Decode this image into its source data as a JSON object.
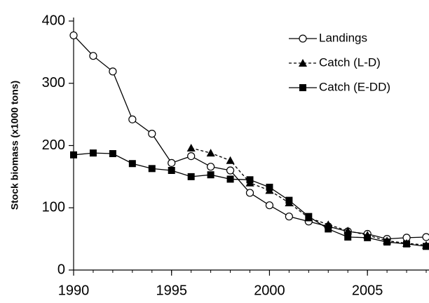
{
  "chart_data": {
    "type": "line",
    "y_label": "Stock biomass (x1000 tons)",
    "x": [
      1990,
      1991,
      1992,
      1993,
      1994,
      1995,
      1996,
      1997,
      1998,
      1999,
      2000,
      2001,
      2002,
      2003,
      2004,
      2005,
      2006,
      2007,
      2008
    ],
    "series": [
      {
        "name": "Landings",
        "color": "#000000",
        "marker": "circle",
        "dashed": false,
        "values": [
          377,
          344,
          319,
          242,
          219,
          172,
          183,
          166,
          160,
          124,
          104,
          86,
          78,
          70,
          62,
          58,
          50,
          52,
          53
        ]
      },
      {
        "name": "Catch (L-D)",
        "color": "#000000",
        "marker": "triangle",
        "dashed": true,
        "values": [
          null,
          null,
          null,
          null,
          null,
          null,
          196,
          188,
          176,
          140,
          128,
          108,
          84,
          73,
          63,
          56,
          47,
          43,
          40
        ]
      },
      {
        "name": "Catch (E-DD)",
        "color": "#000000",
        "marker": "square",
        "dashed": false,
        "values": [
          185,
          188,
          187,
          171,
          163,
          160,
          150,
          153,
          146,
          145,
          133,
          112,
          86,
          66,
          53,
          52,
          45,
          42,
          38
        ]
      }
    ],
    "xlim": [
      1990,
      2008
    ],
    "xticks": [
      1990,
      1995,
      2000,
      2005
    ],
    "ylim": [
      0,
      400
    ],
    "yticks": [
      0,
      100,
      200,
      300,
      400
    ],
    "grid": false,
    "legend": "top-right"
  }
}
